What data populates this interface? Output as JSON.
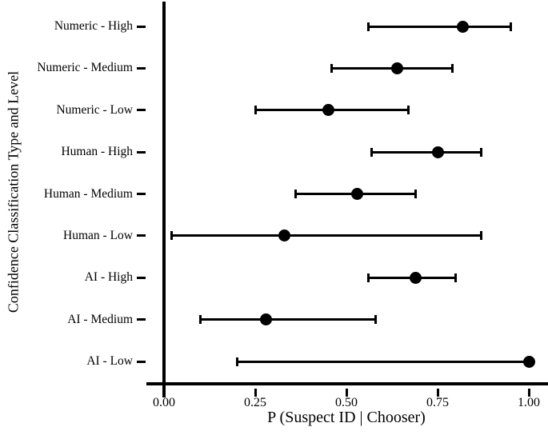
{
  "figure": {
    "background_color": "#ffffff",
    "ink_color": "#000000"
  },
  "chart_data": {
    "type": "scatter",
    "subtype": "forest-plot-dot-with-ci-errorbars",
    "orientation": "horizontal",
    "title": "",
    "xlabel": "P (Suspect ID | Chooser)",
    "ylabel": "Confidence Classification Type and Level",
    "xlim": [
      0,
      1
    ],
    "grid": false,
    "legend": "none",
    "x_axis": {
      "ticks": [
        {
          "value": 0.0,
          "label": "0.00"
        },
        {
          "value": 0.25,
          "label": "0.25"
        },
        {
          "value": 0.5,
          "label": "0.50"
        },
        {
          "value": 0.75,
          "label": "0.75"
        },
        {
          "value": 1.0,
          "label": "1.00"
        }
      ]
    },
    "categories": [
      "Numeric - High",
      "Numeric - Medium",
      "Numeric - Low",
      "Human - High",
      "Human - Medium",
      "Human - Low",
      "AI - High",
      "AI - Medium",
      "AI - Low"
    ],
    "points": [
      {
        "category": "Numeric - High",
        "estimate": 0.82,
        "ci_low": 0.56,
        "ci_high": 0.95
      },
      {
        "category": "Numeric - Medium",
        "estimate": 0.64,
        "ci_low": 0.46,
        "ci_high": 0.79
      },
      {
        "category": "Numeric - Low",
        "estimate": 0.45,
        "ci_low": 0.25,
        "ci_high": 0.67
      },
      {
        "category": "Human - High",
        "estimate": 0.75,
        "ci_low": 0.57,
        "ci_high": 0.87
      },
      {
        "category": "Human - Medium",
        "estimate": 0.53,
        "ci_low": 0.36,
        "ci_high": 0.69
      },
      {
        "category": "Human - Low",
        "estimate": 0.33,
        "ci_low": 0.02,
        "ci_high": 0.87
      },
      {
        "category": "AI - High",
        "estimate": 0.69,
        "ci_low": 0.56,
        "ci_high": 0.8
      },
      {
        "category": "AI - Medium",
        "estimate": 0.28,
        "ci_low": 0.1,
        "ci_high": 0.58
      },
      {
        "category": "AI - Low",
        "estimate": 1.0,
        "ci_low": 0.2,
        "ci_high": 1.0
      }
    ]
  }
}
